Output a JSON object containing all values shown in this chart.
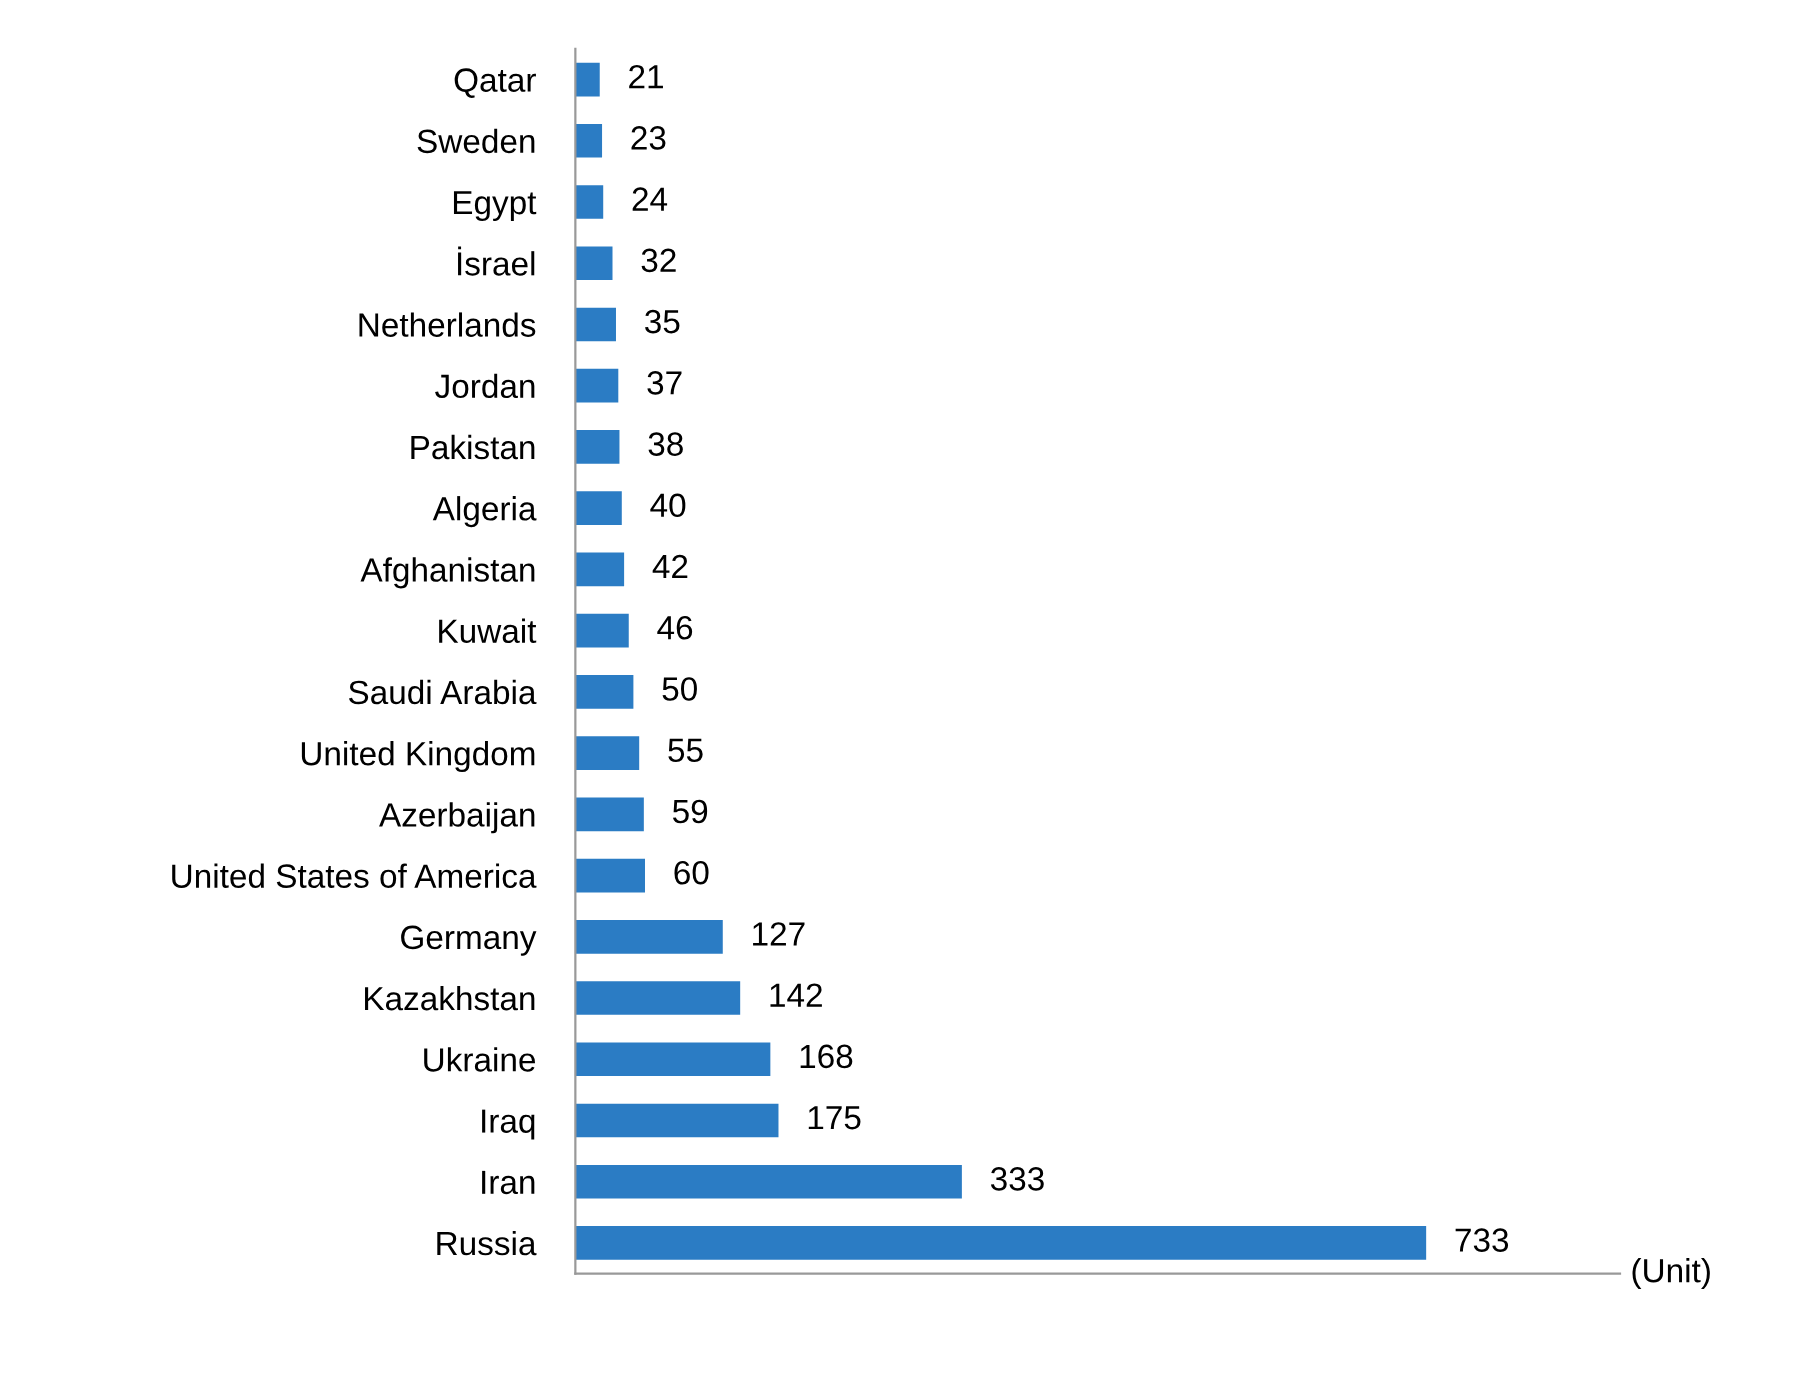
{
  "chart_data": {
    "type": "bar",
    "orientation": "horizontal",
    "xlabel": "(Unit)",
    "categories": [
      "Qatar",
      "Sweden",
      "Egypt",
      "İsrael",
      "Netherlands",
      "Jordan",
      "Pakistan",
      "Algeria",
      "Afghanistan",
      "Kuwait",
      "Saudi Arabia",
      "United Kingdom",
      "Azerbaijan",
      "United States of America",
      "Germany",
      "Kazakhstan",
      "Ukraine",
      "Iraq",
      "Iran",
      "Russia"
    ],
    "values": [
      21,
      23,
      24,
      32,
      35,
      37,
      38,
      40,
      42,
      46,
      50,
      55,
      59,
      60,
      127,
      142,
      168,
      175,
      333,
      733
    ],
    "color": "#2b7cc4",
    "xlim": [
      0,
      900
    ],
    "data_labels": true,
    "grid": false,
    "legend": false,
    "tick_labels": "y"
  }
}
